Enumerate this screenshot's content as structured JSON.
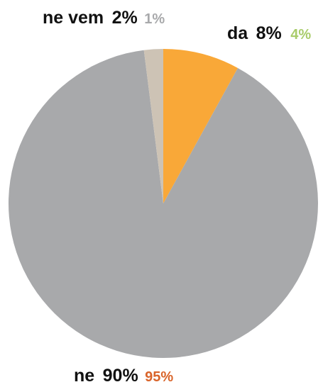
{
  "chart_data": {
    "type": "pie",
    "start": "top",
    "direction": "clockwise",
    "slices": [
      {
        "label": "da",
        "value": 8,
        "display": "8%",
        "secondary": "4%",
        "color": "#f9a838",
        "secondary_color": "#a9cc6a"
      },
      {
        "label": "ne",
        "value": 90,
        "display": "90%",
        "secondary": "95%",
        "color": "#a8a9ab",
        "secondary_color": "#d9642a"
      },
      {
        "label": "ne vem",
        "value": 2,
        "display": "2%",
        "secondary": "1%",
        "color": "#cdc3b5",
        "secondary_color": "#a8a9ab"
      }
    ]
  }
}
